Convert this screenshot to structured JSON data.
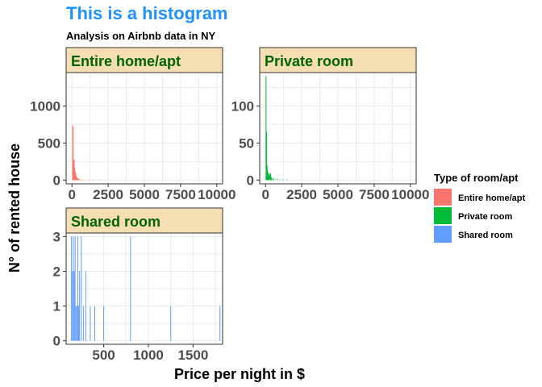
{
  "header": {
    "title": "This is a histogram",
    "subtitle": "Analysis on Airbnb data in NY"
  },
  "axes": {
    "xlabel": "Price per night in $",
    "ylabel": "N° of rented house"
  },
  "legend": {
    "title": "Type of room/apt",
    "entries": [
      {
        "label": "Entire home/apt",
        "color": "#F8766D"
      },
      {
        "label": "Private room",
        "color": "#00BA38"
      },
      {
        "label": "Shared room",
        "color": "#619CFF"
      }
    ]
  },
  "colors": {
    "title": "#1E90FF",
    "strip_fill": "#F5DEB3",
    "strip_text": "#006400",
    "grid": "#EBEBEB",
    "tick_text": "#4D4D4D"
  },
  "chart_data": [
    {
      "type": "bar",
      "title": "Entire home/apt",
      "color": "#F8766D",
      "xlim": [
        -400,
        10400
      ],
      "ylim": [
        -50,
        1450
      ],
      "x_ticks": [
        0,
        2500,
        5000,
        7500,
        10000
      ],
      "x_tick_labels": [
        "0",
        "2500",
        "5000",
        "7500",
        "10000"
      ],
      "y_ticks": [
        0,
        500,
        1000
      ],
      "y_tick_labels": [
        "0",
        "500",
        "1000"
      ],
      "bin_width": 35,
      "x": [
        50,
        85,
        120,
        155,
        190,
        225,
        260,
        295,
        330,
        365,
        400,
        450,
        500,
        600,
        700,
        800,
        1000,
        1200,
        1500,
        2000,
        2500
      ],
      "values": [
        740,
        720,
        260,
        280,
        170,
        120,
        90,
        60,
        45,
        30,
        25,
        20,
        15,
        10,
        8,
        5,
        6,
        3,
        2,
        2,
        1
      ]
    },
    {
      "type": "bar",
      "title": "Private room",
      "color": "#00BA38",
      "xlim": [
        -400,
        10400
      ],
      "ylim": [
        -5,
        145
      ],
      "x_ticks": [
        0,
        2500,
        5000,
        7500,
        10000
      ],
      "x_tick_labels": [
        "0",
        "2500",
        "5000",
        "7500",
        "10000"
      ],
      "y_ticks": [
        0,
        50,
        100
      ],
      "y_tick_labels": [
        "0",
        "50",
        "100"
      ],
      "bin_width": 35,
      "x": [
        40,
        75,
        110,
        145,
        180,
        215,
        250,
        300,
        350,
        400,
        500,
        600,
        800,
        1000,
        1200,
        1500
      ],
      "values": [
        140,
        65,
        20,
        12,
        8,
        10,
        6,
        8,
        9,
        4,
        3,
        2,
        2,
        1,
        1,
        1
      ]
    },
    {
      "type": "bar",
      "title": "Shared room",
      "color": "#619CFF",
      "xlim": [
        80,
        1830
      ],
      "ylim": [
        -0.1,
        3.1
      ],
      "x_ticks": [
        500,
        1000,
        1500
      ],
      "x_tick_labels": [
        "500",
        "1000",
        "1500"
      ],
      "y_ticks": [
        0,
        1,
        2,
        3
      ],
      "y_tick_labels": [
        "0",
        "1",
        "2",
        "3"
      ],
      "bin_width": 8,
      "x": [
        140,
        150,
        160,
        170,
        180,
        190,
        200,
        210,
        220,
        230,
        250,
        275,
        300,
        350,
        400,
        500,
        800,
        1250,
        1800
      ],
      "values": [
        3,
        2,
        3,
        2,
        3,
        1,
        1,
        3,
        1,
        2,
        3,
        1,
        2,
        1,
        1,
        1,
        3,
        1,
        1
      ]
    }
  ]
}
